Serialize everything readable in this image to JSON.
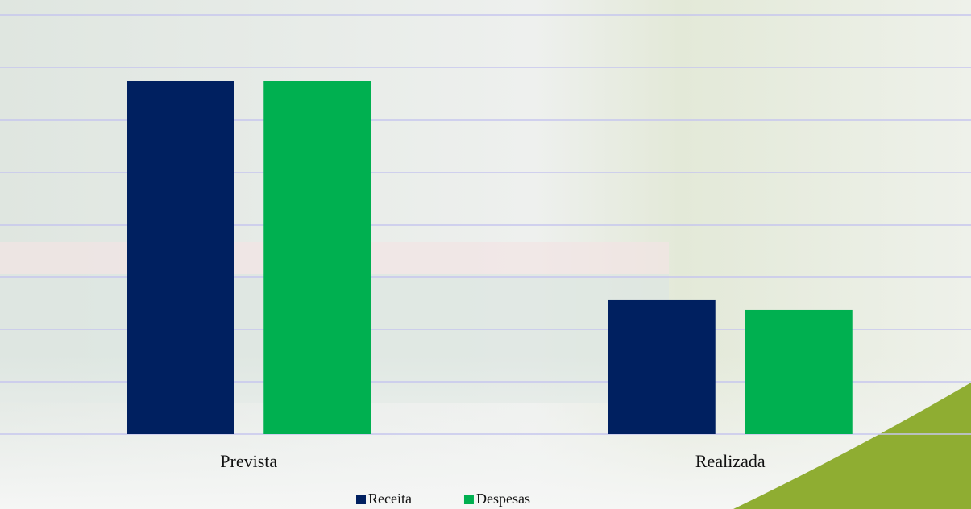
{
  "chart_data": {
    "type": "bar",
    "categories": [
      "Prevista",
      "Realizada"
    ],
    "series": [
      {
        "name": "Receita",
        "color": "#002060",
        "values": [
          6.75,
          2.57
        ]
      },
      {
        "name": "Despesas",
        "color": "#00b050",
        "values": [
          6.75,
          2.37
        ]
      }
    ],
    "ylim": [
      0,
      8
    ],
    "yticks": [
      0,
      1,
      2,
      3,
      4,
      5,
      6,
      7,
      8
    ],
    "grid": true,
    "legend": "bottom"
  }
}
